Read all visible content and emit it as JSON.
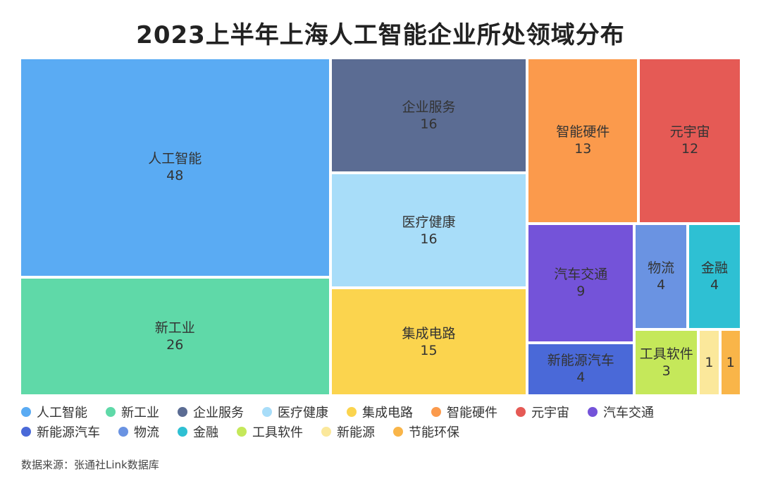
{
  "chart_data": {
    "type": "treemap",
    "title": "2023上半年上海人工智能企业所处领域分布",
    "source": "数据来源：张通社Link数据库",
    "categories": [
      {
        "name": "人工智能",
        "value": 48,
        "color": "#5AABF3"
      },
      {
        "name": "新工业",
        "value": 26,
        "color": "#5FD9A8"
      },
      {
        "name": "企业服务",
        "value": 16,
        "color": "#5B6C93"
      },
      {
        "name": "医疗健康",
        "value": 16,
        "color": "#A8DDF9"
      },
      {
        "name": "集成电路",
        "value": 15,
        "color": "#FBD44E"
      },
      {
        "name": "智能硬件",
        "value": 13,
        "color": "#FB9A4C"
      },
      {
        "name": "元宇宙",
        "value": 12,
        "color": "#E55A55"
      },
      {
        "name": "汽车交通",
        "value": 9,
        "color": "#7453D9"
      },
      {
        "name": "新能源汽车",
        "value": 4,
        "color": "#4A69D8"
      },
      {
        "name": "物流",
        "value": 4,
        "color": "#6A93E2"
      },
      {
        "name": "金融",
        "value": 4,
        "color": "#2EC0D3"
      },
      {
        "name": "工具软件",
        "value": 3,
        "color": "#C5E85A"
      },
      {
        "name": "新能源",
        "value": 1,
        "color": "#FBE89B"
      },
      {
        "name": "节能环保",
        "value": 1,
        "color": "#F9B549"
      }
    ]
  }
}
